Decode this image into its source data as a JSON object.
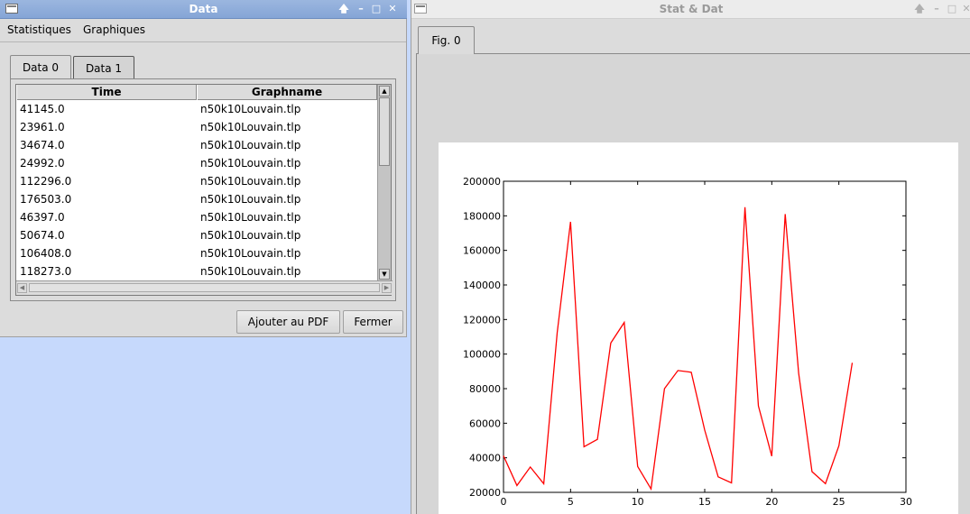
{
  "data_window": {
    "title": "Data",
    "menu": [
      "Statistiques",
      "Graphiques"
    ],
    "tabs": [
      "Data 0",
      "Data 1"
    ],
    "table": {
      "columns": [
        "Time",
        "Graphname"
      ],
      "rows": [
        [
          "41145.0",
          "n50k10Louvain.tlp"
        ],
        [
          "23961.0",
          "n50k10Louvain.tlp"
        ],
        [
          "34674.0",
          "n50k10Louvain.tlp"
        ],
        [
          "24992.0",
          "n50k10Louvain.tlp"
        ],
        [
          "112296.0",
          "n50k10Louvain.tlp"
        ],
        [
          "176503.0",
          "n50k10Louvain.tlp"
        ],
        [
          "46397.0",
          "n50k10Louvain.tlp"
        ],
        [
          "50674.0",
          "n50k10Louvain.tlp"
        ],
        [
          "106408.0",
          "n50k10Louvain.tlp"
        ],
        [
          "118273.0",
          "n50k10Louvain.tlp"
        ]
      ]
    },
    "buttons": {
      "add_pdf": "Ajouter au PDF",
      "close": "Fermer"
    },
    "title_controls": {
      "up": "🡅",
      "minimize": "–",
      "maximize": "□",
      "close": "✕"
    }
  },
  "stat_window": {
    "title": "Stat & Dat",
    "fig_tab": "Fig. 0",
    "title_controls": {
      "up": "🡅",
      "minimize": "–",
      "maximize": "□",
      "close": "✕"
    }
  },
  "chart_data": {
    "type": "line",
    "title": "",
    "xlabel": "",
    "ylabel": "",
    "xlim": [
      0,
      30
    ],
    "ylim": [
      20000,
      200000
    ],
    "xticks": [
      0,
      5,
      10,
      15,
      20,
      25,
      30
    ],
    "yticks": [
      20000,
      40000,
      60000,
      80000,
      100000,
      120000,
      140000,
      160000,
      180000,
      200000
    ],
    "grid": false,
    "series": [
      {
        "color": "#ff0000",
        "x": [
          0,
          1,
          2,
          3,
          4,
          5,
          6,
          7,
          8,
          9,
          10,
          11,
          12,
          13,
          14,
          15,
          16,
          17,
          18,
          19,
          20,
          21,
          22,
          23,
          24,
          25,
          26
        ],
        "y": [
          41145,
          23961,
          34674,
          24992,
          112296,
          176503,
          46397,
          50674,
          106408,
          118273,
          35000,
          22000,
          80000,
          90500,
          89500,
          56000,
          29000,
          25500,
          185000,
          70000,
          41000,
          181000,
          89000,
          32000,
          25000,
          47000,
          95000
        ]
      }
    ]
  }
}
